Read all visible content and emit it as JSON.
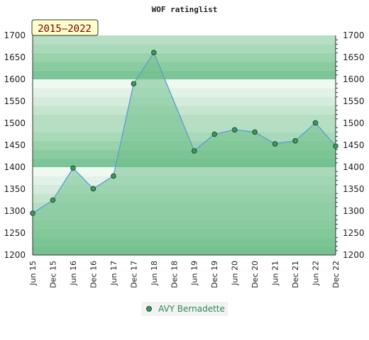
{
  "chart_data": {
    "type": "area",
    "title": "WOF ratinglist",
    "period_badge": "2015–2022",
    "categories": [
      "Jun 15",
      "Dec 15",
      "Jun 16",
      "Dec 16",
      "Jun 17",
      "Dec 17",
      "Jun 18",
      "Dec 18",
      "Jun 19",
      "Dec 19",
      "Jun 20",
      "Dec 20",
      "Jun 21",
      "Dec 21",
      "Jun 22",
      "Dec 22"
    ],
    "series": [
      {
        "name": "AVY Bernadette",
        "values": [
          1295,
          1325,
          1398,
          1351,
          1380,
          1590,
          1661,
          null,
          1437,
          1475,
          1485,
          1480,
          1453,
          1460,
          1501,
          1448
        ]
      }
    ],
    "ylim": [
      1200,
      1700
    ],
    "yticks": [
      1200,
      1250,
      1300,
      1350,
      1400,
      1450,
      1500,
      1550,
      1600,
      1650,
      1700
    ],
    "y_axis_both_sides": true,
    "legend_position": "bottom-center",
    "colors": {
      "area_fill": "#6fbf8a",
      "line": "#5b9bd5",
      "marker": "#3a9a5a",
      "badge_bg": "#ffffcc",
      "legend_text": "#2e8b57"
    }
  }
}
